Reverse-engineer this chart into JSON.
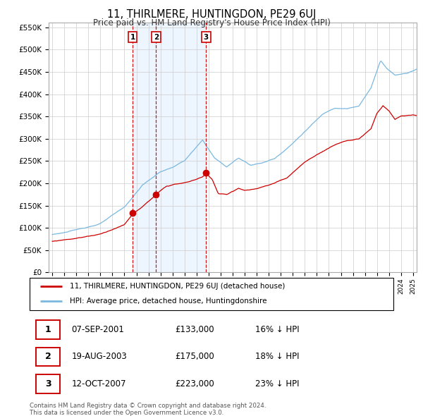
{
  "title": "11, THIRLMERE, HUNTINGDON, PE29 6UJ",
  "subtitle": "Price paid vs. HM Land Registry's House Price Index (HPI)",
  "legend_line1": "11, THIRLMERE, HUNTINGDON, PE29 6UJ (detached house)",
  "legend_line2": "HPI: Average price, detached house, Huntingdonshire",
  "transactions": [
    {
      "label": "1",
      "date": "07-SEP-2001",
      "price": 133000,
      "pct": "16%",
      "x_year": 2001.69
    },
    {
      "label": "2",
      "date": "19-AUG-2003",
      "price": 175000,
      "pct": "18%",
      "x_year": 2003.63
    },
    {
      "label": "3",
      "date": "12-OCT-2007",
      "price": 223000,
      "pct": "23%",
      "x_year": 2007.79
    }
  ],
  "hpi_color": "#7ab8e0",
  "price_color": "#cc0000",
  "marker_color": "#cc0000",
  "grid_color": "#cccccc",
  "shade_color": "#ddeeff",
  "background_color": "#ffffff",
  "ylim": [
    0,
    560000
  ],
  "yticks": [
    0,
    50000,
    100000,
    150000,
    200000,
    250000,
    300000,
    350000,
    400000,
    450000,
    500000,
    550000
  ],
  "xlim_start": 1994.7,
  "xlim_end": 2025.3,
  "footer": "Contains HM Land Registry data © Crown copyright and database right 2024.\nThis data is licensed under the Open Government Licence v3.0."
}
